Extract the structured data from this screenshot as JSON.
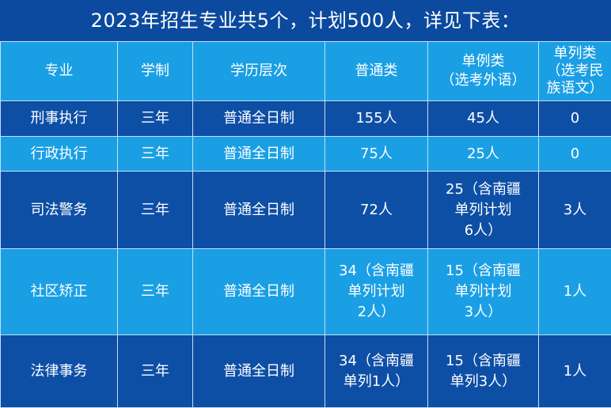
{
  "title": "2023年招生专业共5个，计划500人，详见下表：",
  "colors": {
    "dark_row": "#0e4fa6",
    "light_row": "#1a9fe4",
    "background": "#0b4a9e"
  },
  "table": {
    "headers": [
      "专业",
      "学制",
      "学历层次",
      "普通类",
      "单例类\n（选考外语）",
      "单列类\n（选考民\n族语文）"
    ],
    "rows": [
      [
        "刑事执行",
        "三年",
        "普通全日制",
        "155人",
        "45人",
        "0"
      ],
      [
        "行政执行",
        "三年",
        "普通全日制",
        "75人",
        "25人",
        "0"
      ],
      [
        "司法警务",
        "三年",
        "普通全日制",
        "72人",
        "25（含南疆\n单列计划\n6人）",
        "3人"
      ],
      [
        "社区矫正",
        "三年",
        "普通全日制",
        "34（含南疆\n单列计划\n2人）",
        "15（含南疆\n单列计划\n3人）",
        "1人"
      ],
      [
        "法律事务",
        "三年",
        "普通全日制",
        "34（含南疆\n单列1人）",
        "15（含南疆\n单列3人）",
        "1人"
      ]
    ]
  }
}
